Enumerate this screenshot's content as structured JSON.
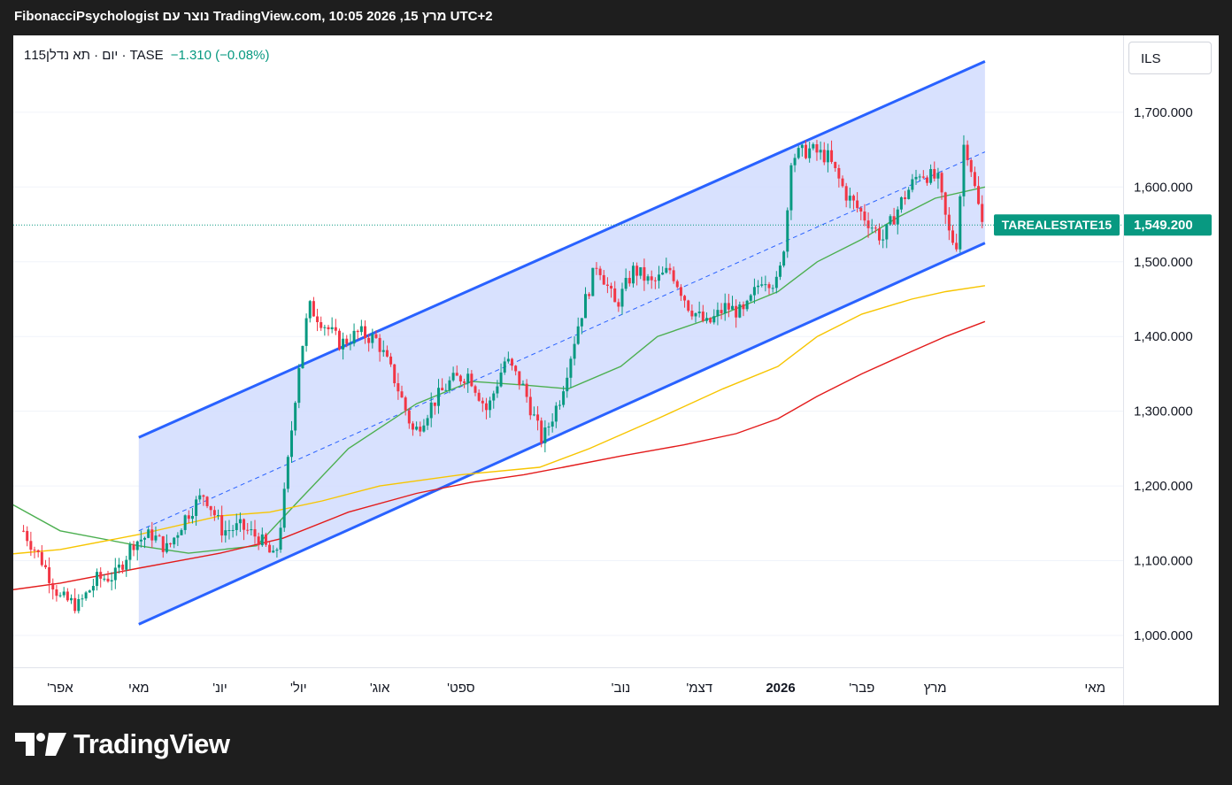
{
  "header": {
    "title": "FibonacciPsychologist נוצר עם TradingView.com, 10:05 2026 ,15 מרץ UTC+2"
  },
  "legend": {
    "symbol": "1יום · תא נדלן15 · TASE",
    "change": "−1.310 (−0.08%)"
  },
  "currency_button": {
    "label": "ILS"
  },
  "price_label": {
    "name": "TAREALESTATE15",
    "value": "1,549.200"
  },
  "brand": {
    "name": "TradingView"
  },
  "colors": {
    "up": "#089981",
    "down": "#f23645",
    "channel": "#2962ff",
    "channel_fill": "#d1dcfe",
    "ma_fast": "#4caf50",
    "ma_mid": "#f7c500",
    "ma_slow": "#e31b1b"
  },
  "chart_data": {
    "type": "candlestick",
    "title": "",
    "ylim": [
      960,
      1780
    ],
    "y_ticks": [
      "1,000.000",
      "1,100.000",
      "1,200.000",
      "1,300.000",
      "1,400.000",
      "1,500.000",
      "1,600.000",
      "1,700.000"
    ],
    "y_tick_values": [
      1000,
      1100,
      1200,
      1300,
      1400,
      1500,
      1600,
      1700
    ],
    "x_ticks": [
      "'אפר",
      "מאי",
      "'יונ",
      "'יול",
      "'אוג",
      "'ספט",
      "'נוב",
      "'דצמ",
      "2026",
      "'פבר",
      "מרץ",
      "מאי"
    ],
    "x_tick_dates": [
      "2025-04-01",
      "2025-05-01",
      "2025-06-01",
      "2025-07-01",
      "2025-08-01",
      "2025-09-01",
      "2025-11-01",
      "2025-12-01",
      "2026-01-01",
      "2026-02-01",
      "2026-03-01",
      "2026-05-01"
    ],
    "price_path": [
      [
        "2025-03-18",
        1140
      ],
      [
        "2025-03-25",
        1100
      ],
      [
        "2025-04-01",
        1050
      ],
      [
        "2025-04-08",
        1040
      ],
      [
        "2025-04-15",
        1075
      ],
      [
        "2025-04-22",
        1080
      ],
      [
        "2025-04-29",
        1125
      ],
      [
        "2025-05-06",
        1135
      ],
      [
        "2025-05-12",
        1115
      ],
      [
        "2025-05-19",
        1160
      ],
      [
        "2025-05-26",
        1190
      ],
      [
        "2025-06-02",
        1140
      ],
      [
        "2025-06-09",
        1145
      ],
      [
        "2025-06-16",
        1130
      ],
      [
        "2025-06-22",
        1100
      ],
      [
        "2025-06-25",
        1170
      ],
      [
        "2025-07-01",
        1360
      ],
      [
        "2025-07-05",
        1440
      ],
      [
        "2025-07-10",
        1420
      ],
      [
        "2025-07-17",
        1390
      ],
      [
        "2025-07-24",
        1405
      ],
      [
        "2025-07-31",
        1395
      ],
      [
        "2025-08-07",
        1340
      ],
      [
        "2025-08-14",
        1270
      ],
      [
        "2025-08-21",
        1310
      ],
      [
        "2025-08-28",
        1340
      ],
      [
        "2025-09-04",
        1350
      ],
      [
        "2025-09-11",
        1300
      ],
      [
        "2025-09-18",
        1370
      ],
      [
        "2025-09-25",
        1330
      ],
      [
        "2025-10-02",
        1260
      ],
      [
        "2025-10-09",
        1320
      ],
      [
        "2025-10-16",
        1420
      ],
      [
        "2025-10-23",
        1500
      ],
      [
        "2025-10-30",
        1440
      ],
      [
        "2025-11-06",
        1490
      ],
      [
        "2025-11-13",
        1470
      ],
      [
        "2025-11-20",
        1490
      ],
      [
        "2025-11-27",
        1440
      ],
      [
        "2025-12-04",
        1415
      ],
      [
        "2025-12-11",
        1440
      ],
      [
        "2025-12-18",
        1430
      ],
      [
        "2025-12-25",
        1480
      ],
      [
        "2025-12-31",
        1470
      ],
      [
        "2026-01-03",
        1540
      ],
      [
        "2026-01-05",
        1640
      ],
      [
        "2026-01-12",
        1650
      ],
      [
        "2026-01-19",
        1640
      ],
      [
        "2026-01-26",
        1590
      ],
      [
        "2026-02-02",
        1560
      ],
      [
        "2026-02-09",
        1530
      ],
      [
        "2026-02-16",
        1580
      ],
      [
        "2026-02-23",
        1620
      ],
      [
        "2026-03-02",
        1610
      ],
      [
        "2026-03-06",
        1540
      ],
      [
        "2026-03-09",
        1520
      ],
      [
        "2026-03-12",
        1660
      ],
      [
        "2026-03-14",
        1640
      ],
      [
        "2026-03-16",
        1600
      ],
      [
        "2026-03-19",
        1549.2
      ]
    ],
    "channel": {
      "start_date": "2025-05-01",
      "end_date": "2026-03-20",
      "upper": [
        1265,
        1768
      ],
      "lower": [
        1015,
        1525
      ],
      "mid": [
        1140,
        1647
      ]
    },
    "series": [
      {
        "name": "",
        "color": "#4caf50",
        "points": [
          [
            "2025-03-01",
            1200
          ],
          [
            "2025-04-01",
            1140
          ],
          [
            "2025-05-01",
            1120
          ],
          [
            "2025-05-20",
            1110
          ],
          [
            "2025-06-15",
            1120
          ],
          [
            "2025-07-01",
            1180
          ],
          [
            "2025-07-20",
            1250
          ],
          [
            "2025-08-15",
            1310
          ],
          [
            "2025-09-05",
            1340
          ],
          [
            "2025-09-25",
            1335
          ],
          [
            "2025-10-12",
            1330
          ],
          [
            "2025-11-01",
            1360
          ],
          [
            "2025-11-15",
            1400
          ],
          [
            "2025-12-10",
            1430
          ],
          [
            "2025-12-31",
            1460
          ],
          [
            "2026-01-15",
            1500
          ],
          [
            "2026-02-01",
            1530
          ],
          [
            "2026-02-15",
            1560
          ],
          [
            "2026-03-01",
            1585
          ],
          [
            "2026-03-20",
            1600
          ]
        ]
      },
      {
        "name": "",
        "color": "#f7c500",
        "points": [
          [
            "2025-03-01",
            1105
          ],
          [
            "2025-04-01",
            1115
          ],
          [
            "2025-05-01",
            1135
          ],
          [
            "2025-06-01",
            1160
          ],
          [
            "2025-06-20",
            1165
          ],
          [
            "2025-07-10",
            1180
          ],
          [
            "2025-08-01",
            1200
          ],
          [
            "2025-09-01",
            1215
          ],
          [
            "2025-10-01",
            1225
          ],
          [
            "2025-10-20",
            1250
          ],
          [
            "2025-11-15",
            1290
          ],
          [
            "2025-12-10",
            1330
          ],
          [
            "2025-12-31",
            1360
          ],
          [
            "2026-01-15",
            1400
          ],
          [
            "2026-02-01",
            1430
          ],
          [
            "2026-02-20",
            1450
          ],
          [
            "2026-03-05",
            1460
          ],
          [
            "2026-03-20",
            1468
          ]
        ]
      },
      {
        "name": "",
        "color": "#e31b1b",
        "points": [
          [
            "2025-03-01",
            1055
          ],
          [
            "2025-04-01",
            1070
          ],
          [
            "2025-05-01",
            1090
          ],
          [
            "2025-06-01",
            1110
          ],
          [
            "2025-06-25",
            1130
          ],
          [
            "2025-07-20",
            1165
          ],
          [
            "2025-08-15",
            1190
          ],
          [
            "2025-09-05",
            1205
          ],
          [
            "2025-09-25",
            1215
          ],
          [
            "2025-10-10",
            1225
          ],
          [
            "2025-11-01",
            1240
          ],
          [
            "2025-11-25",
            1255
          ],
          [
            "2025-12-15",
            1270
          ],
          [
            "2025-12-31",
            1290
          ],
          [
            "2026-01-15",
            1320
          ],
          [
            "2026-02-01",
            1350
          ],
          [
            "2026-02-20",
            1380
          ],
          [
            "2026-03-05",
            1400
          ],
          [
            "2026-03-20",
            1420
          ]
        ]
      }
    ]
  }
}
